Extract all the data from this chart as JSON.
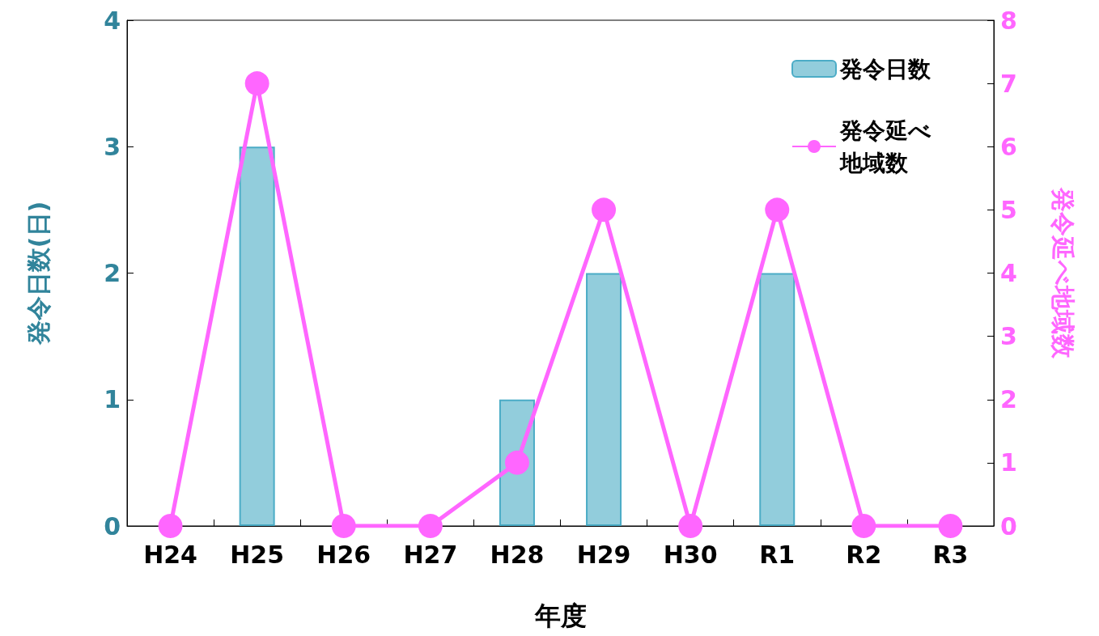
{
  "chart_data": {
    "type": "bar",
    "xlabel": "年度",
    "ylabel": "発令日数(日)",
    "y2label": "発令延べ地域数",
    "categories": [
      "H24",
      "H25",
      "H26",
      "H27",
      "H28",
      "H29",
      "H30",
      "R1",
      "R2",
      "R3"
    ],
    "series": [
      {
        "name": "発令日数",
        "color": "#92cddc",
        "values": [
          0,
          3,
          0,
          0,
          1,
          2,
          0,
          2,
          0,
          0
        ]
      },
      {
        "name": "発令延べ地域数",
        "type": "line",
        "axis": "y2",
        "color": "#ff66ff",
        "values": [
          0,
          7,
          0,
          0,
          1,
          5,
          0,
          5,
          0,
          0
        ]
      }
    ],
    "ylim": [
      0,
      4
    ],
    "yticks": [
      0,
      1,
      2,
      3,
      4
    ],
    "y2lim": [
      0,
      8
    ],
    "y2ticks": [
      0,
      1,
      2,
      3,
      4,
      5,
      6,
      7,
      8
    ],
    "grid": false,
    "legend": "top right",
    "marker": "circle",
    "line_style": "solid"
  }
}
